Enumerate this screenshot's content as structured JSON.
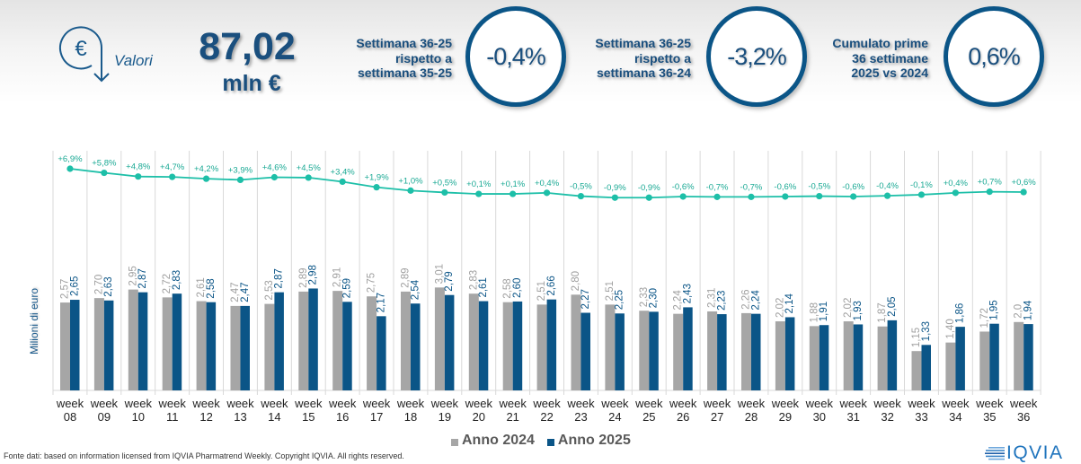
{
  "header": {
    "icon": "euro-down-arrow-icon",
    "values_label": "Valori",
    "total_value": "87,02",
    "total_unit": "mln €",
    "kpis": [
      {
        "label_lines": [
          "Settimana 36-25",
          "rispetto a",
          "settimana 35-25"
        ],
        "value": "-0,4%"
      },
      {
        "label_lines": [
          "Settimana 36-25",
          "rispetto a",
          "settimana 36-24"
        ],
        "value": "-3,2%"
      },
      {
        "label_lines": [
          "Cumulato prime",
          "36 settimane",
          "2025 vs 2024"
        ],
        "value": "0,6%"
      }
    ]
  },
  "colors": {
    "primary": "#0b5587",
    "bar_2024": "#a6a6a6",
    "bar_2025": "#0b5587",
    "line": "#1dbfa8",
    "gridline": "#d9d9d9"
  },
  "chart_data": {
    "type": "bar",
    "title": "",
    "xlabel": "",
    "ylabel": "Milioni di euro",
    "ylim": [
      0,
      7.2
    ],
    "grid": "vertical",
    "legend_position": "bottom",
    "categories": [
      "week 08",
      "week 09",
      "week 10",
      "week 11",
      "week 12",
      "week 13",
      "week 14",
      "week 15",
      "week 16",
      "week 17",
      "week 18",
      "week 19",
      "week 20",
      "week 21",
      "week 22",
      "week 23",
      "week 24",
      "week 25",
      "week 26",
      "week 27",
      "week 28",
      "week 29",
      "week 30",
      "week 31",
      "week 32",
      "week 33",
      "week 34",
      "week 35",
      "week 36"
    ],
    "series": [
      {
        "name": "Anno 2024",
        "values": [
          2.57,
          2.7,
          2.95,
          2.72,
          2.61,
          2.47,
          2.53,
          2.89,
          2.91,
          2.75,
          2.89,
          3.01,
          2.83,
          2.58,
          2.51,
          2.8,
          2.51,
          2.33,
          2.24,
          2.31,
          2.26,
          2.02,
          1.88,
          2.02,
          1.87,
          1.15,
          1.4,
          1.72,
          2.0
        ],
        "labels": [
          "2,57",
          "2,70",
          "2,95",
          "2,72",
          "2,61",
          "2,47",
          "2,53",
          "2,89",
          "2,91",
          "2,75",
          "2,89",
          "3,01",
          "2,83",
          "2,58",
          "2,51",
          "2,80",
          "2,51",
          "2,33",
          "2,24",
          "2,31",
          "2,26",
          "2,02",
          "1,88",
          "2,02",
          "1,87",
          "1,15",
          "1,40",
          "1,72",
          "2,0"
        ]
      },
      {
        "name": "Anno 2025",
        "values": [
          2.65,
          2.63,
          2.87,
          2.83,
          2.58,
          2.47,
          2.87,
          2.98,
          2.59,
          2.17,
          2.54,
          2.79,
          2.61,
          2.6,
          2.66,
          2.27,
          2.25,
          2.3,
          2.43,
          2.23,
          2.24,
          2.14,
          1.91,
          1.93,
          2.05,
          1.33,
          1.86,
          1.95,
          1.94
        ],
        "labels": [
          "2,65",
          "2,63",
          "2,87",
          "2,83",
          "2,58",
          "2,47",
          "2,87",
          "2,98",
          "2,59",
          "2,17",
          "2,54",
          "2,79",
          "2,61",
          "2,60",
          "2,66",
          "2,27",
          "2,25",
          "2,30",
          "2,43",
          "2,23",
          "2,24",
          "2,14",
          "1,91",
          "1,93",
          "2,05",
          "1,33",
          "1,86",
          "1,95",
          "1,94"
        ]
      }
    ],
    "line": {
      "type": "line",
      "unit": "%",
      "values": [
        6.9,
        5.8,
        4.8,
        4.7,
        4.2,
        3.9,
        4.6,
        4.5,
        3.4,
        1.9,
        1.0,
        0.5,
        0.1,
        0.1,
        0.4,
        -0.5,
        -0.9,
        -0.9,
        -0.6,
        -0.7,
        -0.7,
        -0.6,
        -0.5,
        -0.6,
        -0.4,
        -0.1,
        0.4,
        0.7,
        0.6
      ],
      "labels": [
        "+6,9%",
        "+5,8%",
        "+4,8%",
        "+4,7%",
        "+4,2%",
        "+3,9%",
        "+4,6%",
        "+4,5%",
        "+3,4%",
        "+1,9%",
        "+1,0%",
        "+0,5%",
        "+0,1%",
        "+0,1%",
        "+0,4%",
        "-0,5%",
        "-0,9%",
        "-0,9%",
        "-0,6%",
        "-0,7%",
        "-0,7%",
        "-0,6%",
        "-0,5%",
        "-0,6%",
        "-0,4%",
        "-0,1%",
        "+0,4%",
        "+0,7%",
        "+0,6%"
      ]
    }
  },
  "footer": {
    "source_note": "Fonte dati: based on information licensed from IQVIA Pharmatrend Weekly. Copyright IQVIA. All rights reserved.",
    "logo_text": "IQVIA"
  }
}
